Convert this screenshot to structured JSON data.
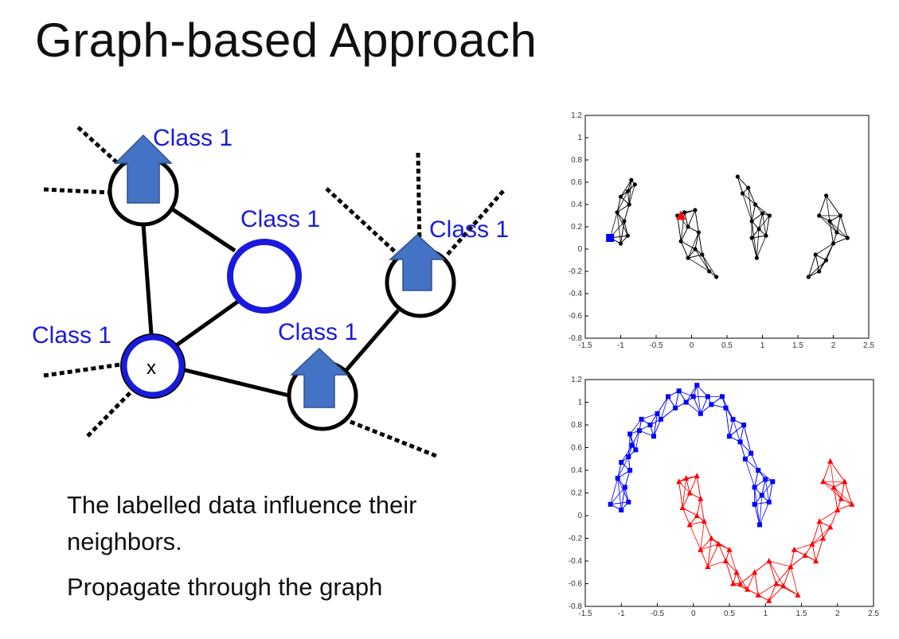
{
  "slide": {
    "title": "Graph-based Approach",
    "body_lines": [
      "The labelled data influence their",
      "neighbors.",
      "Propagate through the graph"
    ]
  },
  "diagram": {
    "class_labels": [
      "Class 1",
      "Class 1",
      "Class 1",
      "Class 1",
      "Class 1"
    ],
    "unknown_node_label": "x",
    "colors": {
      "class": "#1a1adc",
      "arrow": "#4472c4",
      "node": "#000000"
    }
  },
  "chart_data": [
    {
      "type": "scatter",
      "title": "",
      "xlim": [
        -1.5,
        2.5
      ],
      "ylim": [
        -0.8,
        1.2
      ],
      "xticks": [
        "-1.5",
        "-1",
        "-0.5",
        "0",
        "0.5",
        "1",
        "1.5",
        "2",
        "2.5"
      ],
      "yticks": [
        "1.2",
        "1",
        "0.8",
        "0.6",
        "0.4",
        "0.2",
        "0",
        "-0.2",
        "-0.4",
        "-0.6",
        "-0.8"
      ],
      "grid": false,
      "description_state": "before propagation",
      "series": [
        {
          "marker": "circle",
          "color": "#000000",
          "source": "both_moons_partial"
        },
        {
          "marker": "square",
          "color": "#0000ff",
          "points": [
            [
              -1.15,
              0.1
            ]
          ]
        },
        {
          "marker": "triangle",
          "color": "#ff0000",
          "points": [
            [
              -0.15,
              0.3
            ]
          ]
        }
      ]
    },
    {
      "type": "scatter",
      "title": "",
      "xlim": [
        -1.5,
        2.5
      ],
      "ylim": [
        -0.8,
        1.2
      ],
      "xticks": [
        "-1.5",
        "-1",
        "-0.5",
        "0",
        "0.5",
        "1",
        "1.5",
        "2",
        "2.5"
      ],
      "yticks": [
        "1.2",
        "1",
        "0.8",
        "0.6",
        "0.4",
        "0.2",
        "0",
        "-0.2",
        "-0.4",
        "-0.6",
        "-0.8"
      ],
      "grid": false,
      "series": [
        {
          "marker": "square",
          "color": "#0000ff",
          "points": [
            [
              -1.15,
              0.1
            ],
            [
              -1.0,
              0.05
            ],
            [
              -0.9,
              0.12
            ],
            [
              -1.05,
              0.33
            ],
            [
              -0.95,
              0.25
            ],
            [
              -1.0,
              0.47
            ],
            [
              -0.88,
              0.4
            ],
            [
              -0.9,
              0.52
            ],
            [
              -0.85,
              0.62
            ],
            [
              -0.8,
              0.58
            ],
            [
              -0.88,
              0.72
            ],
            [
              -0.75,
              0.75
            ],
            [
              -0.72,
              0.85
            ],
            [
              -0.6,
              0.8
            ],
            [
              -0.55,
              0.7
            ],
            [
              -0.5,
              0.9
            ],
            [
              -0.45,
              0.85
            ],
            [
              -0.35,
              1.05
            ],
            [
              -0.25,
              0.95
            ],
            [
              -0.2,
              1.1
            ],
            [
              -0.1,
              1.0
            ],
            [
              0.05,
              1.15
            ],
            [
              0.0,
              1.05
            ],
            [
              0.1,
              0.9
            ],
            [
              0.2,
              1.05
            ],
            [
              0.25,
              0.98
            ],
            [
              0.4,
              1.05
            ],
            [
              0.45,
              0.95
            ],
            [
              0.55,
              0.85
            ],
            [
              0.5,
              0.7
            ],
            [
              0.7,
              0.8
            ],
            [
              0.65,
              0.65
            ],
            [
              0.8,
              0.55
            ],
            [
              0.72,
              0.5
            ],
            [
              0.9,
              0.4
            ],
            [
              0.85,
              0.25
            ],
            [
              1.0,
              0.32
            ],
            [
              1.1,
              0.3
            ],
            [
              0.95,
              0.18
            ],
            [
              0.85,
              0.1
            ],
            [
              1.05,
              0.12
            ],
            [
              0.92,
              -0.08
            ]
          ]
        },
        {
          "marker": "triangle",
          "color": "#ff0000",
          "points": [
            [
              -0.2,
              0.3
            ],
            [
              -0.1,
              0.33
            ],
            [
              0.05,
              0.35
            ],
            [
              -0.05,
              0.2
            ],
            [
              -0.15,
              0.07
            ],
            [
              0.1,
              0.15
            ],
            [
              0.05,
              0.0
            ],
            [
              -0.05,
              -0.08
            ],
            [
              0.15,
              -0.05
            ],
            [
              0.1,
              -0.3
            ],
            [
              0.25,
              -0.2
            ],
            [
              0.35,
              -0.25
            ],
            [
              0.2,
              -0.45
            ],
            [
              0.45,
              -0.4
            ],
            [
              0.5,
              -0.3
            ],
            [
              0.6,
              -0.5
            ],
            [
              0.55,
              -0.6
            ],
            [
              0.65,
              -0.6
            ],
            [
              0.75,
              -0.65
            ],
            [
              0.85,
              -0.5
            ],
            [
              0.9,
              -0.7
            ],
            [
              1.05,
              -0.75
            ],
            [
              1.05,
              -0.4
            ],
            [
              1.15,
              -0.6
            ],
            [
              1.25,
              -0.62
            ],
            [
              1.35,
              -0.45
            ],
            [
              1.4,
              -0.3
            ],
            [
              1.45,
              -0.7
            ],
            [
              1.55,
              -0.35
            ],
            [
              1.65,
              -0.25
            ],
            [
              1.7,
              -0.4
            ],
            [
              1.8,
              -0.2
            ],
            [
              1.75,
              -0.05
            ],
            [
              1.9,
              -0.1
            ],
            [
              2.0,
              0.05
            ],
            [
              1.95,
              0.25
            ],
            [
              2.1,
              0.3
            ],
            [
              1.9,
              0.48
            ],
            [
              1.8,
              0.3
            ],
            [
              2.2,
              0.1
            ],
            [
              2.05,
              0.15
            ]
          ]
        }
      ]
    }
  ]
}
